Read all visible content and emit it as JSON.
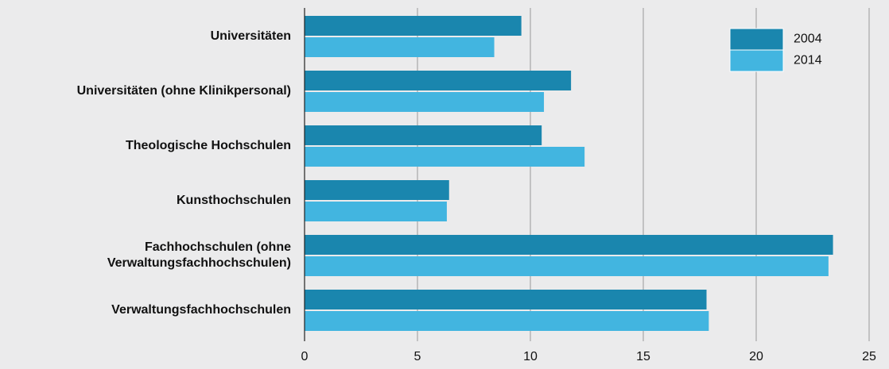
{
  "chart_data": {
    "type": "barh",
    "categories": [
      "Universitäten",
      "Universitäten (ohne Klinikpersonal)",
      "Theologische Hochschulen",
      "Kunsthochschulen",
      "Fachhochschulen (ohne\nVerwaltungsfachhochschulen)",
      "Verwaltungsfachhochschulen"
    ],
    "series": [
      {
        "name": "2004",
        "color": "#1a86ae",
        "values": [
          9.6,
          11.8,
          10.5,
          6.4,
          23.4,
          17.8
        ]
      },
      {
        "name": "2014",
        "color": "#42b5e0",
        "values": [
          8.4,
          10.6,
          12.4,
          6.3,
          23.2,
          17.9
        ]
      }
    ],
    "xlim": [
      0,
      25
    ],
    "xticks": [
      0,
      5,
      10,
      15,
      20,
      25
    ],
    "grid": true,
    "legend": "upper right"
  }
}
